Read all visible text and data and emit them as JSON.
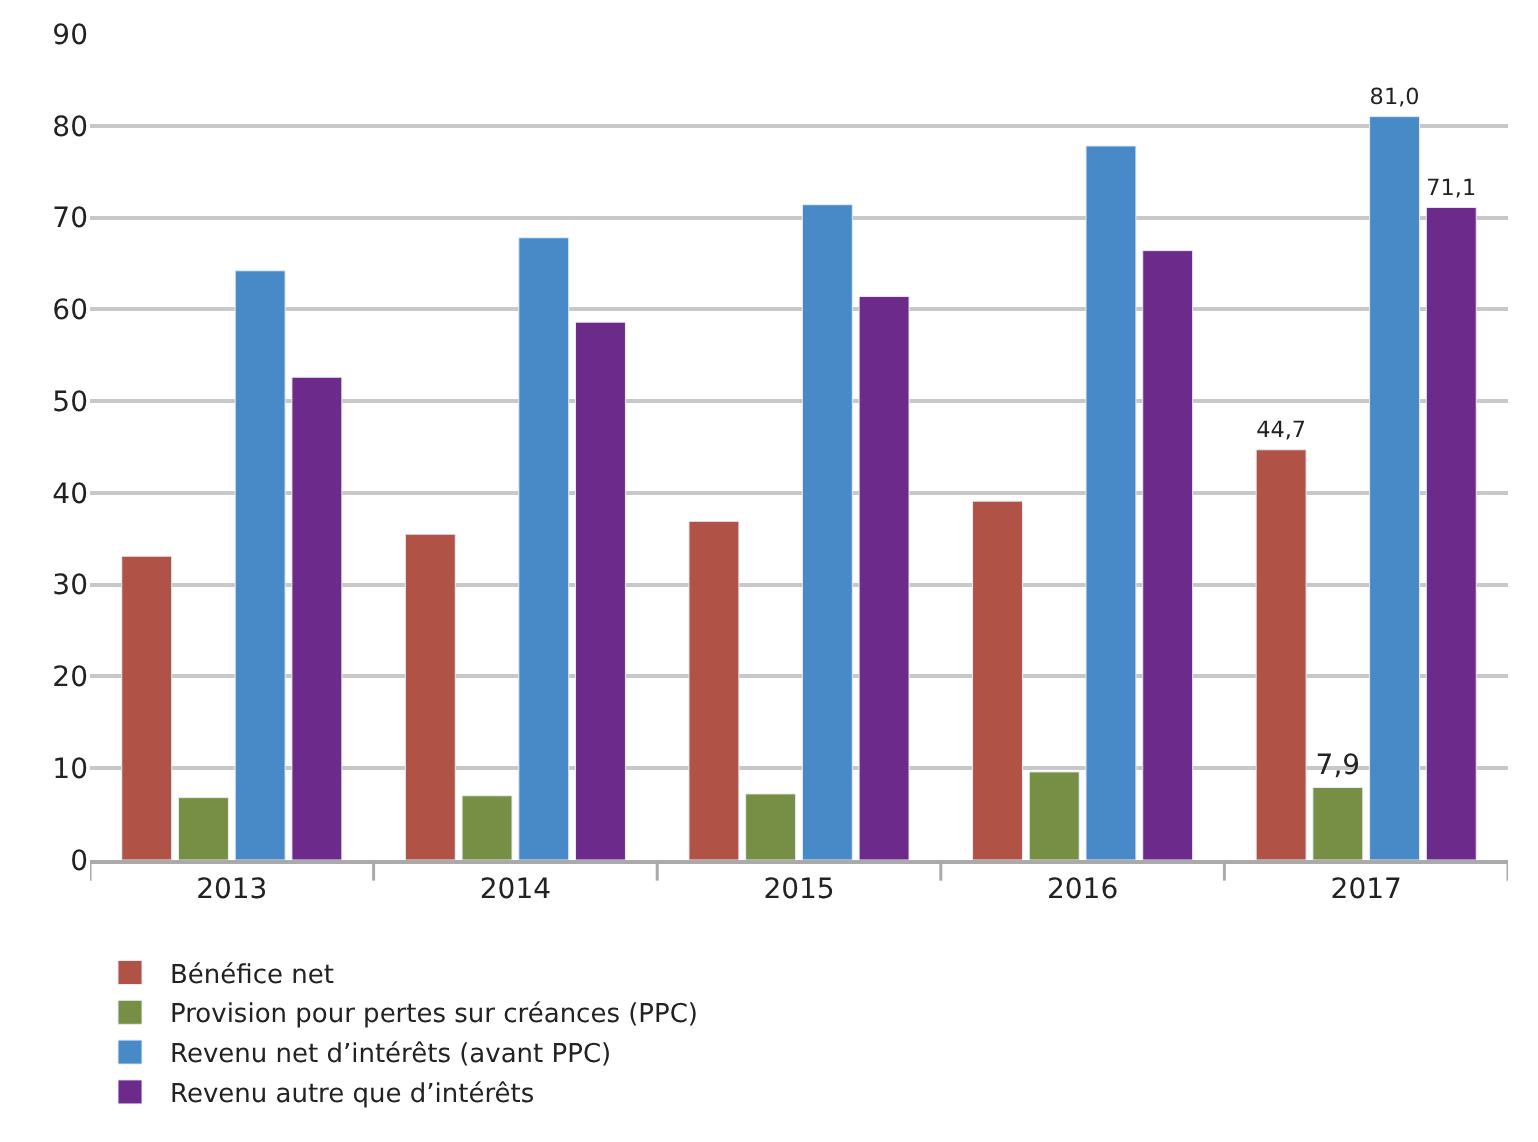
{
  "chart_data": {
    "type": "bar",
    "categories": [
      "2013",
      "2014",
      "2015",
      "2016",
      "2017"
    ],
    "series": [
      {
        "name": "Bénéfice net",
        "color": "#b05346",
        "values": [
          33.1,
          35.5,
          36.9,
          39.1,
          44.7
        ],
        "value_labels": [
          null,
          null,
          null,
          null,
          "44,7"
        ]
      },
      {
        "name": "Provision pour pertes sur créances (PPC)",
        "color": "#778f45",
        "values": [
          6.8,
          7.0,
          7.2,
          9.6,
          7.9
        ],
        "value_labels": [
          null,
          null,
          null,
          null,
          "7,9"
        ]
      },
      {
        "name": "Revenu net d’intérêts (avant PPC)",
        "color": "#4889c8",
        "values": [
          64.2,
          67.8,
          71.4,
          77.8,
          81.0
        ],
        "value_labels": [
          null,
          null,
          null,
          null,
          "81,0"
        ]
      },
      {
        "name": "Revenu autre que d’intérêts",
        "color": "#6c2a8a",
        "values": [
          52.6,
          58.6,
          61.4,
          66.4,
          71.1
        ],
        "value_labels": [
          null,
          null,
          null,
          null,
          "71,1"
        ]
      }
    ],
    "ylim": [
      0,
      90
    ],
    "yticks": [
      0,
      10,
      20,
      30,
      40,
      50,
      60,
      70,
      80,
      90
    ],
    "grid": "y",
    "legend": "bottom"
  }
}
